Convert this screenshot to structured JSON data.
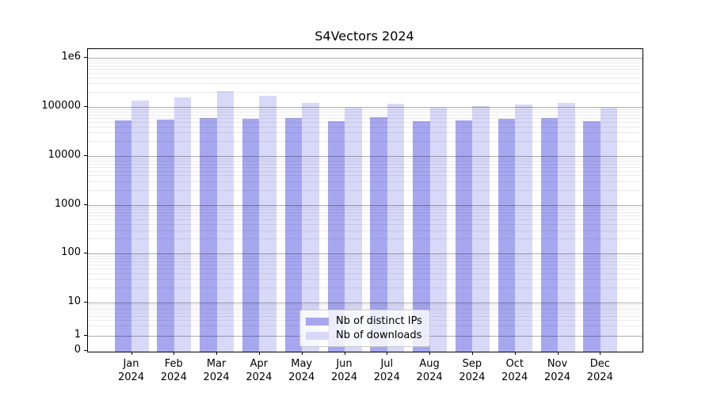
{
  "title": "S4Vectors 2024",
  "colors": {
    "distinct_ips_bar": "#a7a7f0",
    "downloads_bar": "#d8d8f8",
    "major_gridline": "#adadad",
    "minor_gridline": "#ebebeb",
    "axis": "#000000",
    "legend_border": "#cccccc"
  },
  "chart_data": {
    "type": "bar",
    "title": "S4Vectors 2024",
    "xlabel": "",
    "ylabel": "",
    "yscale": "log (with 0 baseline)",
    "ylim": [
      0,
      1000000
    ],
    "grid": true,
    "legend_position": "lower center",
    "year": "2024",
    "categories": [
      "Jan",
      "Feb",
      "Mar",
      "Apr",
      "May",
      "Jun",
      "Jul",
      "Aug",
      "Sep",
      "Oct",
      "Nov",
      "Dec"
    ],
    "y_ticks": [
      {
        "label": "0",
        "value": 0
      },
      {
        "label": "1",
        "value": 1
      },
      {
        "label": "10",
        "value": 10
      },
      {
        "label": "100",
        "value": 100
      },
      {
        "label": "1000",
        "value": 1000
      },
      {
        "label": "10000",
        "value": 10000
      },
      {
        "label": "100000",
        "value": 100000
      },
      {
        "label": "1e6",
        "value": 1000000
      }
    ],
    "series": [
      {
        "name": "Nb of distinct IPs",
        "color": "#a7a7f0",
        "values": [
          53000,
          55000,
          60000,
          56500,
          60000,
          51000,
          61000,
          51000,
          54000,
          57000,
          60000,
          51000
        ]
      },
      {
        "name": "Nb of downloads",
        "color": "#d8d8f8",
        "values": [
          135000,
          156000,
          208000,
          168000,
          119000,
          95000,
          117000,
          96000,
          103000,
          111000,
          120000,
          95000
        ]
      }
    ]
  }
}
